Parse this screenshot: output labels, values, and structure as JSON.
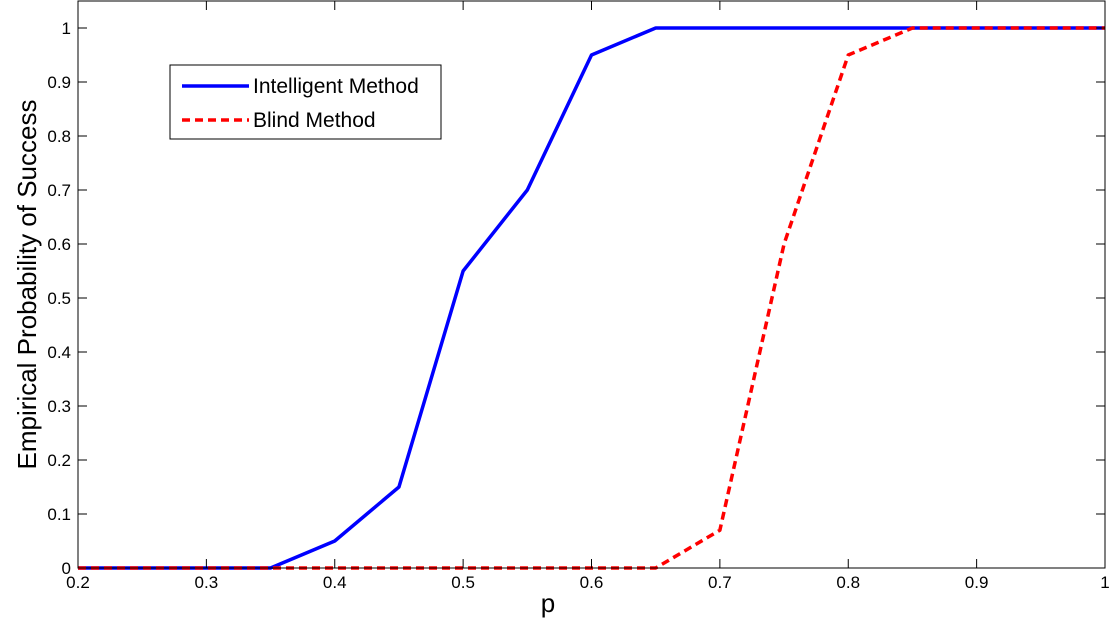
{
  "chart_data": {
    "type": "line",
    "title": "",
    "xlabel": "p",
    "ylabel": "Empirical Probability of Success",
    "xlim": [
      0.2,
      1.0
    ],
    "ylim": [
      0,
      1.05
    ],
    "xticks": [
      0.2,
      0.3,
      0.4,
      0.5,
      0.6,
      0.7,
      0.8,
      0.9,
      1.0
    ],
    "xtick_labels": [
      "0.2",
      "0.3",
      "0.4",
      "0.5",
      "0.6",
      "0.7",
      "0.8",
      "0.9",
      "1"
    ],
    "yticks": [
      0,
      0.1,
      0.2,
      0.3,
      0.4,
      0.5,
      0.6,
      0.7,
      0.8,
      0.9,
      1.0
    ],
    "ytick_labels": [
      "0",
      "0.1",
      "0.2",
      "0.3",
      "0.4",
      "0.5",
      "0.6",
      "0.7",
      "0.8",
      "0.9",
      "1"
    ],
    "grid": false,
    "legend_position": "top-left",
    "series": [
      {
        "name": "Intelligent Method",
        "color": "#0000ff",
        "line_style": "solid",
        "x": [
          0.2,
          0.25,
          0.3,
          0.35,
          0.4,
          0.45,
          0.5,
          0.55,
          0.6,
          0.65,
          0.7,
          0.75,
          0.8,
          0.85,
          0.9,
          0.95,
          1.0
        ],
        "y": [
          0,
          0,
          0,
          0,
          0.05,
          0.15,
          0.55,
          0.7,
          0.95,
          1,
          1,
          1,
          1,
          1,
          1,
          1,
          1
        ]
      },
      {
        "name": "Blind Method",
        "color": "#ff0000",
        "line_style": "dashed",
        "x": [
          0.2,
          0.25,
          0.3,
          0.35,
          0.4,
          0.45,
          0.5,
          0.55,
          0.6,
          0.65,
          0.7,
          0.75,
          0.8,
          0.85,
          0.9,
          0.95,
          1.0
        ],
        "y": [
          0,
          0,
          0,
          0,
          0,
          0,
          0,
          0,
          0,
          0,
          0.07,
          0.6,
          0.95,
          1,
          1,
          1,
          1
        ]
      }
    ]
  }
}
